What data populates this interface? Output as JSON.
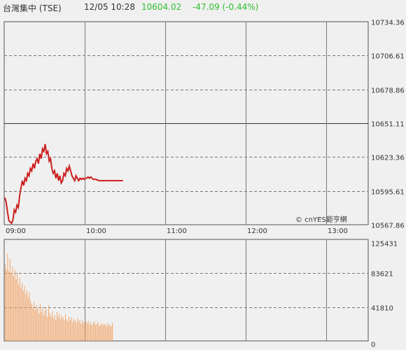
{
  "header": {
    "name": "台灣集中 (TSE)",
    "datetime": "12/05 10:28",
    "price": "10604.02",
    "change": "-47.09 (-0.44%)",
    "change_color": "#2fbf2f"
  },
  "watermark": "© cnYES鉅亨網",
  "chart_data": [
    {
      "type": "line",
      "name": "price",
      "ylim": [
        10567.86,
        10734.36
      ],
      "y_ticks": [
        "10734.36",
        "10706.61",
        "10678.86",
        "10651.11",
        "10623.36",
        "10595.61",
        "10567.86"
      ],
      "reference": 10651.11,
      "x_labels": [
        "09:00",
        "10:00",
        "11:00",
        "12:00",
        "13:00"
      ],
      "x": [
        0,
        1,
        2,
        3,
        4,
        5,
        6,
        7,
        8,
        9,
        10,
        11,
        12,
        13,
        14,
        15,
        16,
        17,
        18,
        19,
        20,
        21,
        22,
        23,
        24,
        25,
        26,
        27,
        28,
        29,
        30,
        31,
        32,
        33,
        34,
        35,
        36,
        37,
        38,
        39,
        40,
        41,
        42,
        43,
        44,
        45,
        46,
        47,
        48,
        49,
        50,
        51,
        52,
        53,
        54,
        55,
        56,
        57,
        58,
        59,
        60,
        61,
        62,
        63,
        64,
        65,
        66,
        67,
        68,
        70,
        72,
        74,
        76,
        78,
        80,
        82,
        84,
        86,
        88
      ],
      "values": [
        10590,
        10586,
        10578,
        10571,
        10570,
        10569,
        10572,
        10580,
        10578,
        10584,
        10582,
        10592,
        10598,
        10604,
        10600,
        10606,
        10604,
        10610,
        10608,
        10614,
        10612,
        10618,
        10614,
        10620,
        10622,
        10618,
        10626,
        10622,
        10630,
        10628,
        10634,
        10626,
        10628,
        10620,
        10622,
        10614,
        10610,
        10612,
        10606,
        10610,
        10604,
        10608,
        10602,
        10604,
        10610,
        10608,
        10614,
        10612,
        10616,
        10612,
        10608,
        10606,
        10604,
        10608,
        10606,
        10604,
        10606,
        10605,
        10606,
        10605,
        10606,
        10606,
        10607,
        10606,
        10607,
        10606,
        10605,
        10605,
        10605,
        10604,
        10604,
        10604,
        10604,
        10604,
        10604,
        10604,
        10604,
        10604,
        10604
      ],
      "color": "#cc1f1f"
    },
    {
      "type": "bar",
      "name": "volume",
      "ylim": [
        0,
        125431
      ],
      "y_ticks": [
        "125431",
        "83621",
        "41810",
        "0"
      ],
      "values": [
        95000,
        88000,
        108000,
        86000,
        101000,
        84000,
        92000,
        80000,
        88000,
        76000,
        84000,
        70000,
        78000,
        66000,
        72000,
        62000,
        68000,
        58000,
        62000,
        54000,
        60000,
        50000,
        46000,
        42000,
        48000,
        38000,
        44000,
        40000,
        34000,
        46000,
        36000,
        42000,
        32000,
        38000,
        40000,
        30000,
        44000,
        34000,
        30000,
        36000,
        28000,
        32000,
        26000,
        36000,
        30000,
        34000,
        27000,
        31000,
        29000,
        25000,
        33000,
        27000,
        24000,
        30000,
        26000,
        29000,
        23000,
        27000,
        25000,
        22000,
        28000,
        24000,
        26000,
        21000,
        25000,
        23000,
        20000,
        24000,
        22000,
        25000,
        20000,
        23000,
        19000,
        22000,
        24000,
        20000,
        21000,
        23000,
        18000,
        20000,
        22000,
        19000,
        21000,
        20000,
        18000,
        22000,
        19000,
        20000,
        18000,
        22000
      ],
      "color": "#f2a66a"
    }
  ]
}
